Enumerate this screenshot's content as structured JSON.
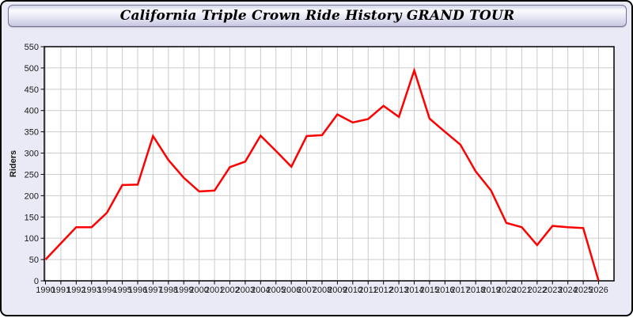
{
  "window": {
    "title": "California Triple Crown Ride History GRAND TOUR"
  },
  "colors": {
    "page_bg": "#eaeaf6",
    "plot_bg": "#ffffff",
    "grid": "#cccccc",
    "frame": "#000000",
    "line": "#ff0000",
    "tick_text": "#1a1a1a",
    "axis_label_text": "#1a1a1a"
  },
  "chart_data": {
    "type": "line",
    "title": "California Triple Crown Ride History GRAND TOUR",
    "xlabel": "",
    "ylabel": "Riders",
    "x": [
      1990,
      1991,
      1992,
      1993,
      1994,
      1995,
      1996,
      1997,
      1998,
      1999,
      2000,
      2001,
      2002,
      2003,
      2004,
      2005,
      2006,
      2007,
      2008,
      2009,
      2010,
      2011,
      2012,
      2013,
      2014,
      2015,
      2016,
      2017,
      2018,
      2019,
      2020,
      2021,
      2022,
      2023,
      2024,
      2025,
      2026
    ],
    "series": [
      {
        "name": "Riders",
        "color": "#ff0000",
        "values": [
          50,
          88,
          126,
          126,
          160,
          225,
          226,
          340,
          284,
          242,
          210,
          212,
          267,
          280,
          341,
          305,
          268,
          340,
          342,
          391,
          372,
          380,
          411,
          385,
          494,
          381,
          350,
          320,
          257,
          212,
          136,
          126,
          84,
          129,
          126,
          124,
          0
        ]
      }
    ],
    "ylim": [
      0,
      550
    ],
    "ytick_step": 50,
    "grid": true,
    "legend": "none"
  }
}
